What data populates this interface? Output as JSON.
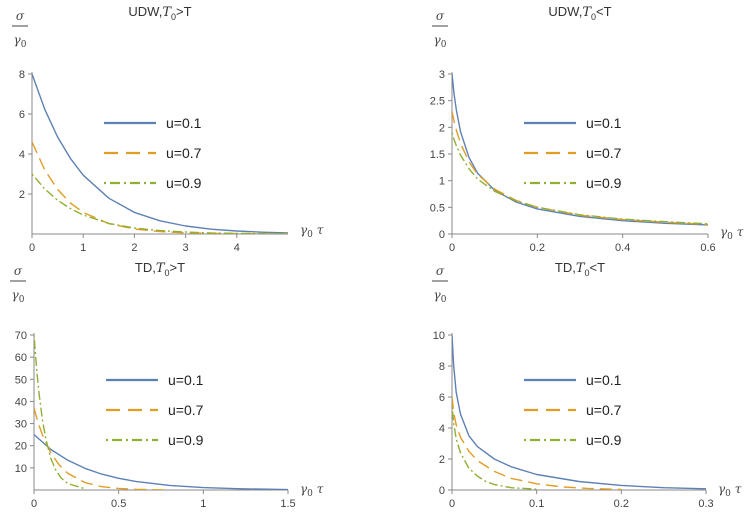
{
  "chart_data": [
    {
      "type": "line",
      "title": "UDW,T0>T",
      "title_parts": {
        "prefix": "UDW,",
        "var": "T",
        "sub": "0",
        "suffix": ">T"
      },
      "ylabel": {
        "num": "σ",
        "den": "γ0"
      },
      "xlabel": "γ0 τ",
      "xlim": [
        0,
        5
      ],
      "ylim": [
        0,
        8
      ],
      "xticks": [
        0,
        1,
        2,
        3,
        4
      ],
      "yticks": [
        2,
        4,
        6,
        8
      ],
      "xtick_labels": [
        "0",
        "1",
        "2",
        "3",
        "4"
      ],
      "ytick_labels": [
        "2",
        "4",
        "6",
        "8"
      ],
      "legend_position": "center-right",
      "series": [
        {
          "name": "u=0.1",
          "style": "solid",
          "color": "#5e81b5",
          "x": [
            0,
            0.25,
            0.5,
            0.75,
            1,
            1.5,
            2,
            2.5,
            3,
            3.5,
            4,
            4.5,
            5
          ],
          "y": [
            8,
            6.23,
            4.85,
            3.78,
            2.94,
            1.79,
            1.08,
            0.66,
            0.4,
            0.24,
            0.15,
            0.09,
            0.05
          ]
        },
        {
          "name": "u=0.7",
          "style": "dashed",
          "color": "#e19c24",
          "x": [
            0,
            0.25,
            0.5,
            0.75,
            1,
            1.5,
            2,
            2.5,
            3,
            3.5,
            4,
            4.5,
            5
          ],
          "y": [
            4.6,
            3.2,
            2.23,
            1.55,
            1.08,
            0.52,
            0.25,
            0.12,
            0.06,
            0.03,
            0.02,
            0.01,
            0
          ]
        },
        {
          "name": "u=0.9",
          "style": "dotdash",
          "color": "#8fb032",
          "x": [
            0,
            0.25,
            0.5,
            0.75,
            1,
            1.5,
            2,
            2.5,
            3,
            3.5,
            4,
            4.5,
            5
          ],
          "y": [
            3.0,
            2.25,
            1.69,
            1.27,
            0.95,
            0.53,
            0.3,
            0.17,
            0.1,
            0.05,
            0.03,
            0.02,
            0.01
          ]
        }
      ]
    },
    {
      "type": "line",
      "title": "UDW,T0<T",
      "title_parts": {
        "prefix": "UDW,",
        "var": "T",
        "sub": "0",
        "suffix": "<T"
      },
      "ylabel": {
        "num": "σ",
        "den": "γ0"
      },
      "xlabel": "γ0 τ",
      "xlim": [
        0,
        0.6
      ],
      "ylim": [
        0,
        3
      ],
      "xticks": [
        0,
        0.2,
        0.4,
        0.6
      ],
      "yticks": [
        0,
        0.5,
        1,
        1.5,
        2,
        2.5,
        3
      ],
      "xtick_labels": [
        "0",
        "0.2",
        "0.4",
        "0.6"
      ],
      "ytick_labels": [
        "0",
        "0.5",
        "1",
        "1.5",
        "2",
        "2.5",
        "3"
      ],
      "legend_position": "center-right",
      "series": [
        {
          "name": "u=0.1",
          "style": "solid",
          "color": "#5e81b5",
          "x": [
            0,
            0.005,
            0.01,
            0.02,
            0.04,
            0.06,
            0.1,
            0.15,
            0.2,
            0.3,
            0.4,
            0.5,
            0.6
          ],
          "y": [
            3.0,
            2.62,
            2.33,
            1.92,
            1.43,
            1.14,
            0.82,
            0.6,
            0.47,
            0.33,
            0.25,
            0.2,
            0.17
          ]
        },
        {
          "name": "u=0.7",
          "style": "dashed",
          "color": "#e19c24",
          "x": [
            0,
            0.005,
            0.01,
            0.02,
            0.04,
            0.06,
            0.1,
            0.15,
            0.2,
            0.3,
            0.4,
            0.5,
            0.6
          ],
          "y": [
            2.3,
            2.11,
            1.95,
            1.7,
            1.35,
            1.12,
            0.84,
            0.63,
            0.5,
            0.35,
            0.27,
            0.22,
            0.18
          ]
        },
        {
          "name": "u=0.9",
          "style": "dotdash",
          "color": "#8fb032",
          "x": [
            0,
            0.005,
            0.01,
            0.02,
            0.04,
            0.06,
            0.1,
            0.15,
            0.2,
            0.3,
            0.4,
            0.5,
            0.6
          ],
          "y": [
            1.9,
            1.77,
            1.66,
            1.48,
            1.22,
            1.03,
            0.8,
            0.62,
            0.5,
            0.36,
            0.28,
            0.23,
            0.19
          ]
        }
      ]
    },
    {
      "type": "line",
      "title": "TD,T0>T",
      "title_parts": {
        "prefix": "TD,",
        "var": "T",
        "sub": "0",
        "suffix": ">T"
      },
      "ylabel": {
        "num": "σ",
        "den": "γ0"
      },
      "xlabel": "γ0 τ",
      "xlim": [
        0,
        1.5
      ],
      "ylim": [
        0,
        70
      ],
      "xticks": [
        0,
        0.5,
        1,
        1.5
      ],
      "yticks": [
        10,
        20,
        30,
        40,
        50,
        60,
        70
      ],
      "xtick_labels": [
        "0",
        "0.5",
        "1",
        "1.5"
      ],
      "ytick_labels": [
        "10",
        "20",
        "30",
        "40",
        "50",
        "60",
        "70"
      ],
      "legend_position": "center-right",
      "series": [
        {
          "name": "u=0.1",
          "style": "solid",
          "color": "#5e81b5",
          "x": [
            0,
            0.1,
            0.2,
            0.3,
            0.4,
            0.5,
            0.6,
            0.8,
            1.0,
            1.2,
            1.5
          ],
          "y": [
            25,
            18.3,
            13.4,
            9.8,
            7.2,
            5.3,
            3.9,
            2.1,
            1.1,
            0.6,
            0.2
          ]
        },
        {
          "name": "u=0.7",
          "style": "dashed",
          "color": "#e19c24",
          "x": [
            0,
            0.025,
            0.05,
            0.1,
            0.15,
            0.2,
            0.3,
            0.4,
            0.5,
            0.6,
            0.8
          ],
          "y": [
            37,
            30.3,
            24.8,
            16.6,
            11.2,
            7.5,
            3.4,
            1.5,
            0.7,
            0.3,
            0
          ]
        },
        {
          "name": "u=0.9",
          "style": "dotdash",
          "color": "#8fb032",
          "x": [
            0,
            0.01,
            0.02,
            0.03,
            0.05,
            0.07,
            0.1,
            0.13,
            0.16,
            0.2,
            0.3
          ],
          "y": [
            70,
            59.7,
            50.9,
            43.4,
            31.5,
            22.9,
            14.2,
            8.8,
            5.4,
            2.9,
            0.6
          ]
        }
      ]
    },
    {
      "type": "line",
      "title": "TD,T0<T",
      "title_parts": {
        "prefix": "TD,",
        "var": "T",
        "sub": "0",
        "suffix": "<T"
      },
      "ylabel": {
        "num": "σ",
        "den": "γ0"
      },
      "xlabel": "γ0 τ",
      "xlim": [
        0,
        0.3
      ],
      "ylim": [
        0,
        10
      ],
      "xticks": [
        0,
        0.1,
        0.2,
        0.3
      ],
      "yticks": [
        0,
        2,
        4,
        6,
        8,
        10
      ],
      "xtick_labels": [
        "0",
        "0.1",
        "0.2",
        "0.3"
      ],
      "ytick_labels": [
        "0",
        "2",
        "4",
        "6",
        "8",
        "10"
      ],
      "legend_position": "center-right",
      "series": [
        {
          "name": "u=0.1",
          "style": "solid",
          "color": "#5e81b5",
          "x": [
            0,
            0.002,
            0.005,
            0.01,
            0.02,
            0.03,
            0.05,
            0.07,
            0.1,
            0.15,
            0.2,
            0.25,
            0.3
          ],
          "y": [
            10,
            8.0,
            6.3,
            4.9,
            3.5,
            2.8,
            2.0,
            1.5,
            1.0,
            0.55,
            0.3,
            0.15,
            0.08
          ]
        },
        {
          "name": "u=0.7",
          "style": "dashed",
          "color": "#e19c24",
          "x": [
            0,
            0.002,
            0.005,
            0.01,
            0.02,
            0.03,
            0.05,
            0.07,
            0.1,
            0.13,
            0.16,
            0.2
          ],
          "y": [
            6.0,
            5.0,
            4.2,
            3.4,
            2.5,
            1.9,
            1.2,
            0.75,
            0.4,
            0.2,
            0.1,
            0.03
          ]
        },
        {
          "name": "u=0.9",
          "style": "dotdash",
          "color": "#8fb032",
          "x": [
            0,
            0.002,
            0.005,
            0.01,
            0.02,
            0.03,
            0.04,
            0.05,
            0.07,
            0.1
          ],
          "y": [
            5.4,
            4.3,
            3.3,
            2.4,
            1.4,
            0.9,
            0.55,
            0.35,
            0.15,
            0.05
          ]
        }
      ]
    }
  ]
}
